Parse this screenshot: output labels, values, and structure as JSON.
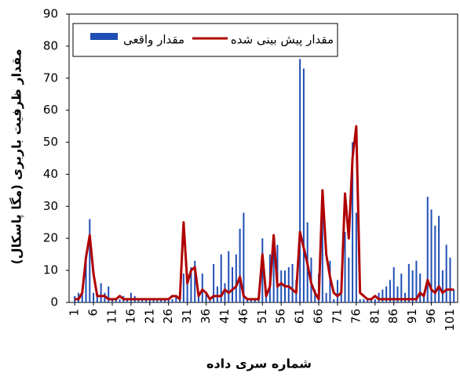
{
  "chart_data": {
    "type": "bar_line",
    "x_label": "شماره سری داده",
    "y_label": "مقدار ظرفیت باربری (مگا پاسکال)",
    "xlim": [
      -0.5,
      103
    ],
    "xticks": [
      1,
      6,
      11,
      16,
      21,
      26,
      31,
      36,
      41,
      46,
      51,
      56,
      61,
      66,
      71,
      76,
      81,
      86,
      91,
      96,
      101
    ],
    "ylim": [
      0,
      90
    ],
    "yticks": [
      0,
      10,
      20,
      30,
      40,
      50,
      60,
      70,
      80,
      90
    ],
    "x": [
      1,
      2,
      3,
      4,
      5,
      6,
      7,
      8,
      9,
      10,
      11,
      12,
      13,
      14,
      15,
      16,
      17,
      18,
      19,
      20,
      21,
      22,
      23,
      24,
      25,
      26,
      27,
      28,
      29,
      30,
      31,
      32,
      33,
      34,
      35,
      36,
      37,
      38,
      39,
      40,
      41,
      42,
      43,
      44,
      45,
      46,
      47,
      48,
      49,
      50,
      51,
      52,
      53,
      54,
      55,
      56,
      57,
      58,
      59,
      60,
      61,
      62,
      63,
      64,
      65,
      66,
      67,
      68,
      69,
      70,
      71,
      72,
      73,
      74,
      75,
      76,
      77,
      78,
      79,
      80,
      81,
      82,
      83,
      84,
      85,
      86,
      87,
      88,
      89,
      90,
      91,
      92,
      93,
      94,
      95,
      96,
      97,
      98,
      99,
      100,
      101,
      102
    ],
    "series": [
      {
        "name": "مقدار واقعی",
        "color": "#1f4fb5",
        "kind": "bar",
        "values": [
          2,
          3,
          4,
          14,
          26,
          3,
          2,
          6,
          3,
          5,
          1,
          1,
          1,
          2,
          1,
          3,
          2,
          1,
          1,
          1,
          1,
          1,
          1,
          1,
          1,
          1,
          1,
          2,
          1,
          9,
          9,
          11,
          13,
          2,
          9,
          3,
          1,
          12,
          5,
          15,
          6,
          16,
          11,
          15,
          23,
          28,
          1,
          1,
          1,
          1,
          20,
          3,
          15,
          21,
          18,
          10,
          10,
          11,
          12,
          7,
          76,
          73,
          25,
          14,
          4,
          9,
          31,
          3,
          13,
          1,
          7,
          3,
          22,
          14,
          50,
          28,
          1,
          1,
          1,
          1,
          1,
          3,
          4,
          5,
          7,
          11,
          5,
          9,
          3,
          12,
          10,
          13,
          9,
          3,
          33,
          29,
          24,
          27,
          10,
          18,
          14,
          4
        ]
      },
      {
        "name": "مقدار پیش بینی شده",
        "color": "#b00000",
        "kind": "line",
        "values": [
          1,
          1,
          3,
          14,
          21,
          9,
          2,
          2,
          2,
          1,
          1,
          1,
          2,
          1,
          1,
          1,
          1,
          1,
          1,
          1,
          1,
          1,
          1,
          1,
          1,
          1,
          2,
          2,
          1,
          25,
          6,
          10,
          11,
          2,
          4,
          3,
          1,
          2,
          2,
          2,
          4,
          3,
          4,
          5,
          8,
          2,
          1,
          1,
          1,
          1,
          15,
          2,
          5,
          21,
          5,
          6,
          5,
          5,
          4,
          3,
          22,
          17,
          12,
          6,
          3,
          1,
          35,
          15,
          8,
          3,
          2,
          3,
          34,
          20,
          45,
          55,
          3,
          2,
          1,
          1,
          2,
          1,
          1,
          1,
          1,
          1,
          1,
          1,
          1,
          1,
          1,
          1,
          3,
          2,
          7,
          4,
          3,
          5,
          3,
          4,
          4,
          4
        ]
      }
    ]
  }
}
